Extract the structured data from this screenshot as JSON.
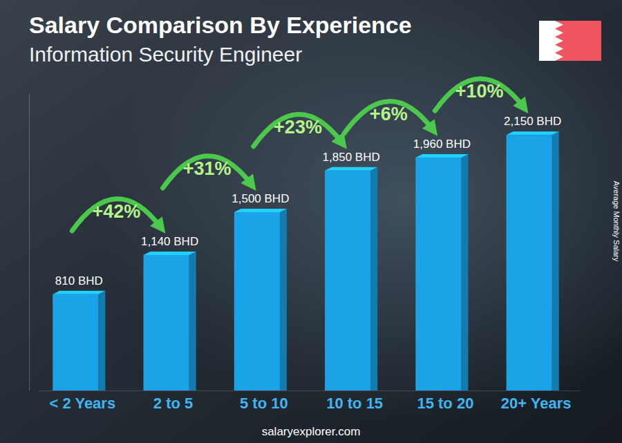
{
  "chart_data": {
    "type": "bar",
    "title": "Salary Comparison By Experience",
    "subtitle": "Information Security Engineer",
    "ylabel": "Average Monthly Salary",
    "categories": [
      "< 2 Years",
      "2 to 5",
      "5 to 10",
      "10 to 15",
      "15 to 20",
      "20+ Years"
    ],
    "values": [
      810,
      1140,
      1500,
      1850,
      1960,
      2150
    ],
    "value_labels": [
      "810 BHD",
      "1,140 BHD",
      "1,500 BHD",
      "1,850 BHD",
      "1,960 BHD",
      "2,150 BHD"
    ],
    "data_labels": true,
    "color": "#1ba3e8",
    "ylim": [
      0,
      2500
    ],
    "tick_labels": "x",
    "grid": false,
    "annotations": [
      "+42%",
      "+31%",
      "+23%",
      "+6%",
      "+10%"
    ],
    "source": "salaryexplorer.com"
  }
}
